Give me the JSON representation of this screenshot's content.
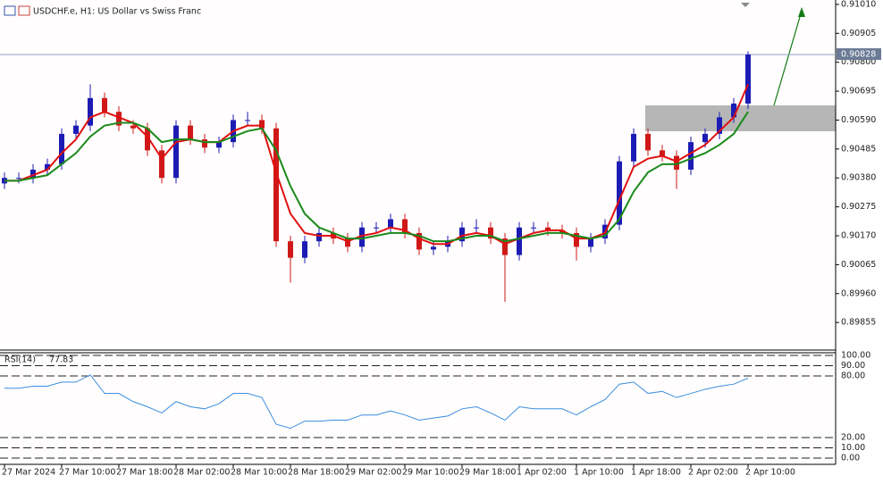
{
  "chart_data": [
    {
      "type": "candlestick",
      "title": "USDCHF.e, H1:  US Dollar vs Swiss Franc",
      "categories": [
        "27 Mar 2024",
        null,
        null,
        null,
        "27 Mar 10:00",
        null,
        null,
        null,
        "27 Mar 18:00",
        null,
        null,
        null,
        "28 Mar 02:00",
        null,
        null,
        null,
        "28 Mar 10:00",
        null,
        null,
        null,
        "28 Mar 18:00",
        null,
        null,
        null,
        "29 Mar 02:00",
        null,
        null,
        null,
        "29 Mar 10:00",
        null,
        null,
        null,
        "29 Mar 18:00",
        null,
        null,
        null,
        "1 Apr 02:00",
        null,
        null,
        null,
        "1 Apr 10:00",
        null,
        null,
        null,
        "1 Apr 18:00",
        null,
        null,
        null,
        "2 Apr 02:00",
        null,
        null,
        null,
        "2 Apr 10:00"
      ],
      "open": [
        0.9036,
        0.9038,
        0.9038,
        0.9041,
        0.9043,
        0.9054,
        0.9057,
        0.9067,
        0.9062,
        0.9057,
        0.9056,
        0.9048,
        0.9038,
        0.9057,
        0.9052,
        0.9049,
        0.9051,
        0.9059,
        0.9059,
        0.9056,
        0.9015,
        0.9009,
        0.9015,
        0.9018,
        0.9016,
        0.9013,
        0.902,
        0.902,
        0.9023,
        0.9018,
        0.9012,
        0.9013,
        0.9015,
        0.902,
        0.902,
        0.9016,
        0.901,
        0.902,
        0.902,
        0.9019,
        0.9018,
        0.9013,
        0.9016,
        0.9021,
        0.9044,
        0.9054,
        0.9048,
        0.9046,
        0.9041,
        0.9051,
        0.9054,
        0.906,
        0.9065
      ],
      "high": [
        0.904,
        0.904,
        0.9043,
        0.9045,
        0.9056,
        0.9059,
        0.9072,
        0.9069,
        0.9064,
        0.9059,
        0.9058,
        0.905,
        0.9059,
        0.9059,
        0.9054,
        0.9053,
        0.9061,
        0.9062,
        0.9061,
        0.9058,
        0.9017,
        0.9017,
        0.902,
        0.902,
        0.9018,
        0.9022,
        0.9022,
        0.9025,
        0.9025,
        0.902,
        0.9015,
        0.9017,
        0.9022,
        0.9023,
        0.9022,
        0.9018,
        0.9022,
        0.9022,
        0.9022,
        0.9021,
        0.902,
        0.9018,
        0.9023,
        0.9046,
        0.9056,
        0.9056,
        0.905,
        0.9048,
        0.9053,
        0.9056,
        0.9062,
        0.9067,
        0.9084
      ],
      "low": [
        0.9034,
        0.9036,
        0.9036,
        0.9039,
        0.9041,
        0.9052,
        0.9055,
        0.906,
        0.9055,
        0.9054,
        0.9046,
        0.9036,
        0.9036,
        0.905,
        0.9047,
        0.9047,
        0.9049,
        0.9057,
        0.9054,
        0.9013,
        0.9,
        0.9007,
        0.9013,
        0.9014,
        0.9011,
        0.9011,
        0.9018,
        0.9018,
        0.9016,
        0.901,
        0.901,
        0.9011,
        0.9013,
        0.9018,
        0.9014,
        0.8993,
        0.9008,
        0.9018,
        0.9017,
        0.9016,
        0.9008,
        0.9011,
        0.9014,
        0.9019,
        0.9042,
        0.9046,
        0.9044,
        0.9034,
        0.9039,
        0.9049,
        0.9052,
        0.9058,
        0.9063
      ],
      "close": [
        0.9038,
        0.9038,
        0.9041,
        0.9043,
        0.9054,
        0.9057,
        0.9067,
        0.9062,
        0.9057,
        0.9056,
        0.9048,
        0.9038,
        0.9057,
        0.9052,
        0.9049,
        0.9051,
        0.9059,
        0.9059,
        0.9056,
        0.9015,
        0.9009,
        0.9015,
        0.9018,
        0.9016,
        0.9013,
        0.902,
        0.902,
        0.9023,
        0.9018,
        0.9012,
        0.9013,
        0.9015,
        0.902,
        0.902,
        0.9016,
        0.901,
        0.902,
        0.902,
        0.9019,
        0.9018,
        0.9013,
        0.9016,
        0.9021,
        0.9044,
        0.9054,
        0.9048,
        0.9046,
        0.9041,
        0.9051,
        0.9054,
        0.906,
        0.9065,
        0.90828
      ],
      "up_color": "#1c1cb4",
      "down_color": "#d01818",
      "lines": [
        {
          "color": "#e01010",
          "values": [
            0.9037,
            0.9037,
            0.9039,
            0.9041,
            0.9047,
            0.9052,
            0.906,
            0.9062,
            0.906,
            0.9058,
            0.9053,
            0.9045,
            0.9051,
            0.9052,
            0.9051,
            0.9051,
            0.9055,
            0.9057,
            0.9057,
            0.904,
            0.9025,
            0.9018,
            0.9017,
            0.9017,
            0.9015,
            0.9017,
            0.9018,
            0.902,
            0.9019,
            0.9016,
            0.9014,
            0.9014,
            0.9017,
            0.9018,
            0.9017,
            0.9014,
            0.9016,
            0.9018,
            0.9019,
            0.9019,
            0.9016,
            0.9016,
            0.9018,
            0.903,
            0.9042,
            0.9045,
            0.9046,
            0.9044,
            0.9047,
            0.905,
            0.9055,
            0.906,
            0.9072
          ]
        },
        {
          "color": "#1a8a1a",
          "values": [
            0.9037,
            0.9037,
            0.9038,
            0.9039,
            0.9043,
            0.9047,
            0.9053,
            0.9057,
            0.9058,
            0.9058,
            0.9056,
            0.9051,
            0.9052,
            0.9052,
            0.9051,
            0.9051,
            0.9053,
            0.9055,
            0.9056,
            0.9048,
            0.9035,
            0.9025,
            0.902,
            0.9018,
            0.9016,
            0.9016,
            0.9017,
            0.9018,
            0.9018,
            0.9017,
            0.9015,
            0.9015,
            0.9016,
            0.9017,
            0.9017,
            0.9015,
            0.9016,
            0.9017,
            0.9018,
            0.9018,
            0.9017,
            0.9016,
            0.9017,
            0.9023,
            0.9033,
            0.904,
            0.9043,
            0.9043,
            0.9045,
            0.9047,
            0.905,
            0.9054,
            0.9062
          ]
        }
      ],
      "current_price": 0.90828,
      "ylim": [
        0.89755,
        0.91026
      ],
      "yticks": [
        {
          "value": 0.9101,
          "label": "0.91010"
        },
        {
          "value": 0.90905,
          "label": "0.90905"
        },
        {
          "value": 0.908,
          "label": "0.90800"
        },
        {
          "value": 0.90695,
          "label": "0.90695"
        },
        {
          "value": 0.9059,
          "label": "0.90590"
        },
        {
          "value": 0.90485,
          "label": "0.90485"
        },
        {
          "value": 0.9038,
          "label": "0.90380"
        },
        {
          "value": 0.90275,
          "label": "0.90275"
        },
        {
          "value": 0.9017,
          "label": "0.90170"
        },
        {
          "value": 0.90065,
          "label": "0.90065"
        },
        {
          "value": 0.8996,
          "label": "0.89960"
        },
        {
          "value": 0.89855,
          "label": "0.89855"
        }
      ]
    },
    {
      "type": "line",
      "title": "RSI(14)",
      "color": "#3a8ee0",
      "values": [
        68,
        68,
        70,
        70,
        74,
        74,
        81,
        63,
        63,
        55,
        50,
        44,
        55,
        50,
        48,
        53,
        63,
        63,
        59,
        33,
        29,
        36,
        36,
        37,
        37,
        42,
        42,
        46,
        42,
        37,
        39,
        41,
        48,
        50,
        44,
        37,
        50,
        48,
        48,
        48,
        42,
        50,
        57,
        72,
        74,
        63,
        65,
        59,
        63,
        67,
        70,
        72,
        77.83
      ],
      "ylim": [
        0,
        100
      ],
      "yticks": [
        {
          "value": 100,
          "label": "100.00"
        },
        {
          "value": 90,
          "label": "90.00"
        },
        {
          "value": 80,
          "label": "80.00"
        },
        {
          "value": 20,
          "label": "20.00"
        },
        {
          "value": 10,
          "label": "10.00"
        },
        {
          "value": 0,
          "label": "0.00"
        }
      ],
      "dashed_levels": true
    }
  ]
}
